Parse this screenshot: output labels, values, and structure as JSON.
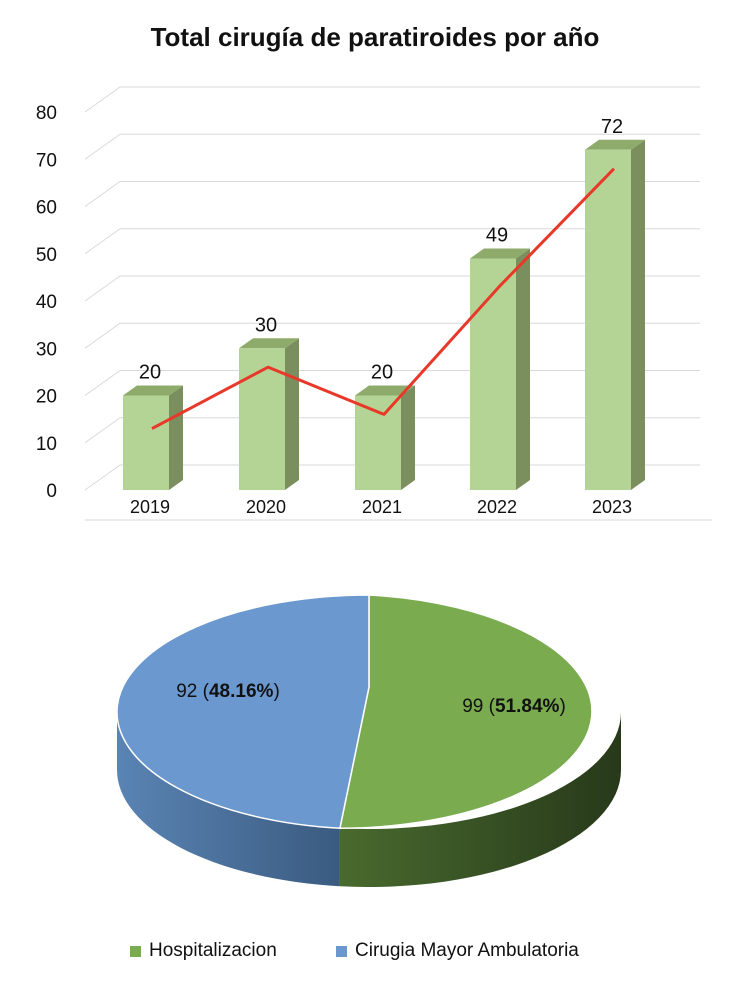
{
  "chart_data": [
    {
      "type": "bar",
      "style": "3d-column",
      "title": "Total cirugía de paratiroides por año",
      "categories": [
        "2019",
        "2020",
        "2021",
        "2022",
        "2023"
      ],
      "values": [
        20,
        30,
        20,
        49,
        72
      ],
      "data_labels": [
        "20",
        "30",
        "20",
        "49",
        "72"
      ],
      "trend_line": [
        13,
        26,
        16,
        43,
        68
      ],
      "ylim": [
        0,
        80
      ],
      "y_ticks": [
        "0",
        "10",
        "20",
        "30",
        "40",
        "50",
        "60",
        "70",
        "80"
      ],
      "grid": true,
      "colors": {
        "bar_front": "#b3d494",
        "bar_side": "#7a8f5d",
        "bar_top": "#8fab6c",
        "trend": "#e8382a",
        "grid": "#d9d9d9"
      }
    },
    {
      "type": "pie",
      "style": "3d-pie",
      "slices": [
        {
          "name": "Hospitalizacion",
          "value": 99,
          "percent": 51.84,
          "label_value": "99",
          "label_percent": "51.84%",
          "color": "#7aab4f"
        },
        {
          "name": "Cirugia Mayor Ambulatoria",
          "value": 92,
          "percent": 48.16,
          "label_value": "92",
          "label_percent": "48.16%",
          "color": "#6a98cf"
        }
      ],
      "legend": [
        "Hospitalizacion",
        "Cirugia Mayor Ambulatoria"
      ],
      "legend_position": "bottom"
    }
  ]
}
